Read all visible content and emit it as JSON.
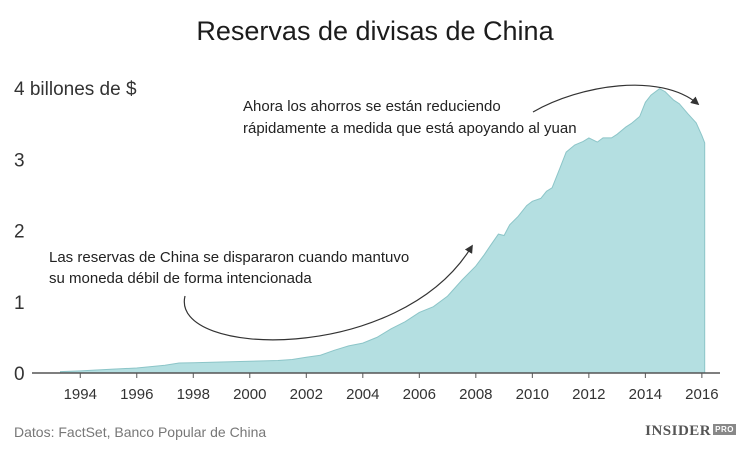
{
  "header": {
    "title": "Reservas de divisas de China"
  },
  "footer": {
    "source": "Datos: FactSet, Banco Popular de China",
    "logo": "INSIDER",
    "logo_badge": "PRO"
  },
  "chart_data": {
    "type": "area",
    "title": "Reservas de divisas de China",
    "xlabel": "",
    "ylabel": "",
    "ylim": [
      0,
      4
    ],
    "xlim": [
      1993.0,
      2016.5
    ],
    "y_ticks": [
      {
        "value": 0,
        "label": "0"
      },
      {
        "value": 1,
        "label": "1"
      },
      {
        "value": 2,
        "label": "2"
      },
      {
        "value": 3,
        "label": "3"
      },
      {
        "value": 4,
        "label": "4 billones de $"
      }
    ],
    "x_ticks": [
      "1994",
      "1996",
      "1998",
      "2000",
      "2002",
      "2004",
      "2006",
      "2008",
      "2010",
      "2012",
      "2014",
      "2016"
    ],
    "grid": false,
    "colors": {
      "fill": "#b4dfe1",
      "line": "#8cc5c8",
      "annotation": "#333333"
    },
    "annotations": [
      {
        "lines": [
          "Ahora los ahorros se están reduciendo",
          "rápidamente a medida que está apoyando al yuan"
        ]
      },
      {
        "lines": [
          "Las reservas de China se dispararon cuando mantuvo",
          "su moneda débil de forma intencionada"
        ]
      }
    ],
    "series": [
      {
        "x": [
          1993.3,
          1994.0,
          1995.0,
          1996.0,
          1997.0,
          1997.5,
          1998.0,
          1999.0,
          2000.0,
          2001.0,
          2001.5,
          2002.0,
          2002.5,
          2003.0,
          2003.5,
          2004.0,
          2004.5,
          2005.0,
          2005.5,
          2006.0,
          2006.5,
          2007.0,
          2007.5,
          2008.0,
          2008.3,
          2008.5,
          2008.8,
          2009.0,
          2009.2,
          2009.5,
          2009.8,
          2010.0,
          2010.3,
          2010.5,
          2010.7,
          2011.0,
          2011.2,
          2011.5,
          2011.8,
          2012.0,
          2012.3,
          2012.5,
          2012.8,
          2013.0,
          2013.3,
          2013.5,
          2013.8,
          2014.0,
          2014.2,
          2014.5,
          2014.7,
          2015.0,
          2015.2,
          2015.5,
          2015.8,
          2016.0,
          2016.1
        ],
        "values": [
          0.02,
          0.03,
          0.05,
          0.07,
          0.11,
          0.14,
          0.145,
          0.155,
          0.165,
          0.175,
          0.19,
          0.22,
          0.25,
          0.32,
          0.38,
          0.42,
          0.5,
          0.62,
          0.72,
          0.85,
          0.93,
          1.08,
          1.3,
          1.5,
          1.66,
          1.78,
          1.95,
          1.93,
          2.08,
          2.2,
          2.35,
          2.41,
          2.45,
          2.55,
          2.6,
          2.9,
          3.1,
          3.2,
          3.25,
          3.3,
          3.24,
          3.3,
          3.3,
          3.35,
          3.45,
          3.5,
          3.6,
          3.8,
          3.9,
          3.99,
          3.95,
          3.83,
          3.78,
          3.64,
          3.51,
          3.33,
          3.23
        ]
      }
    ]
  }
}
